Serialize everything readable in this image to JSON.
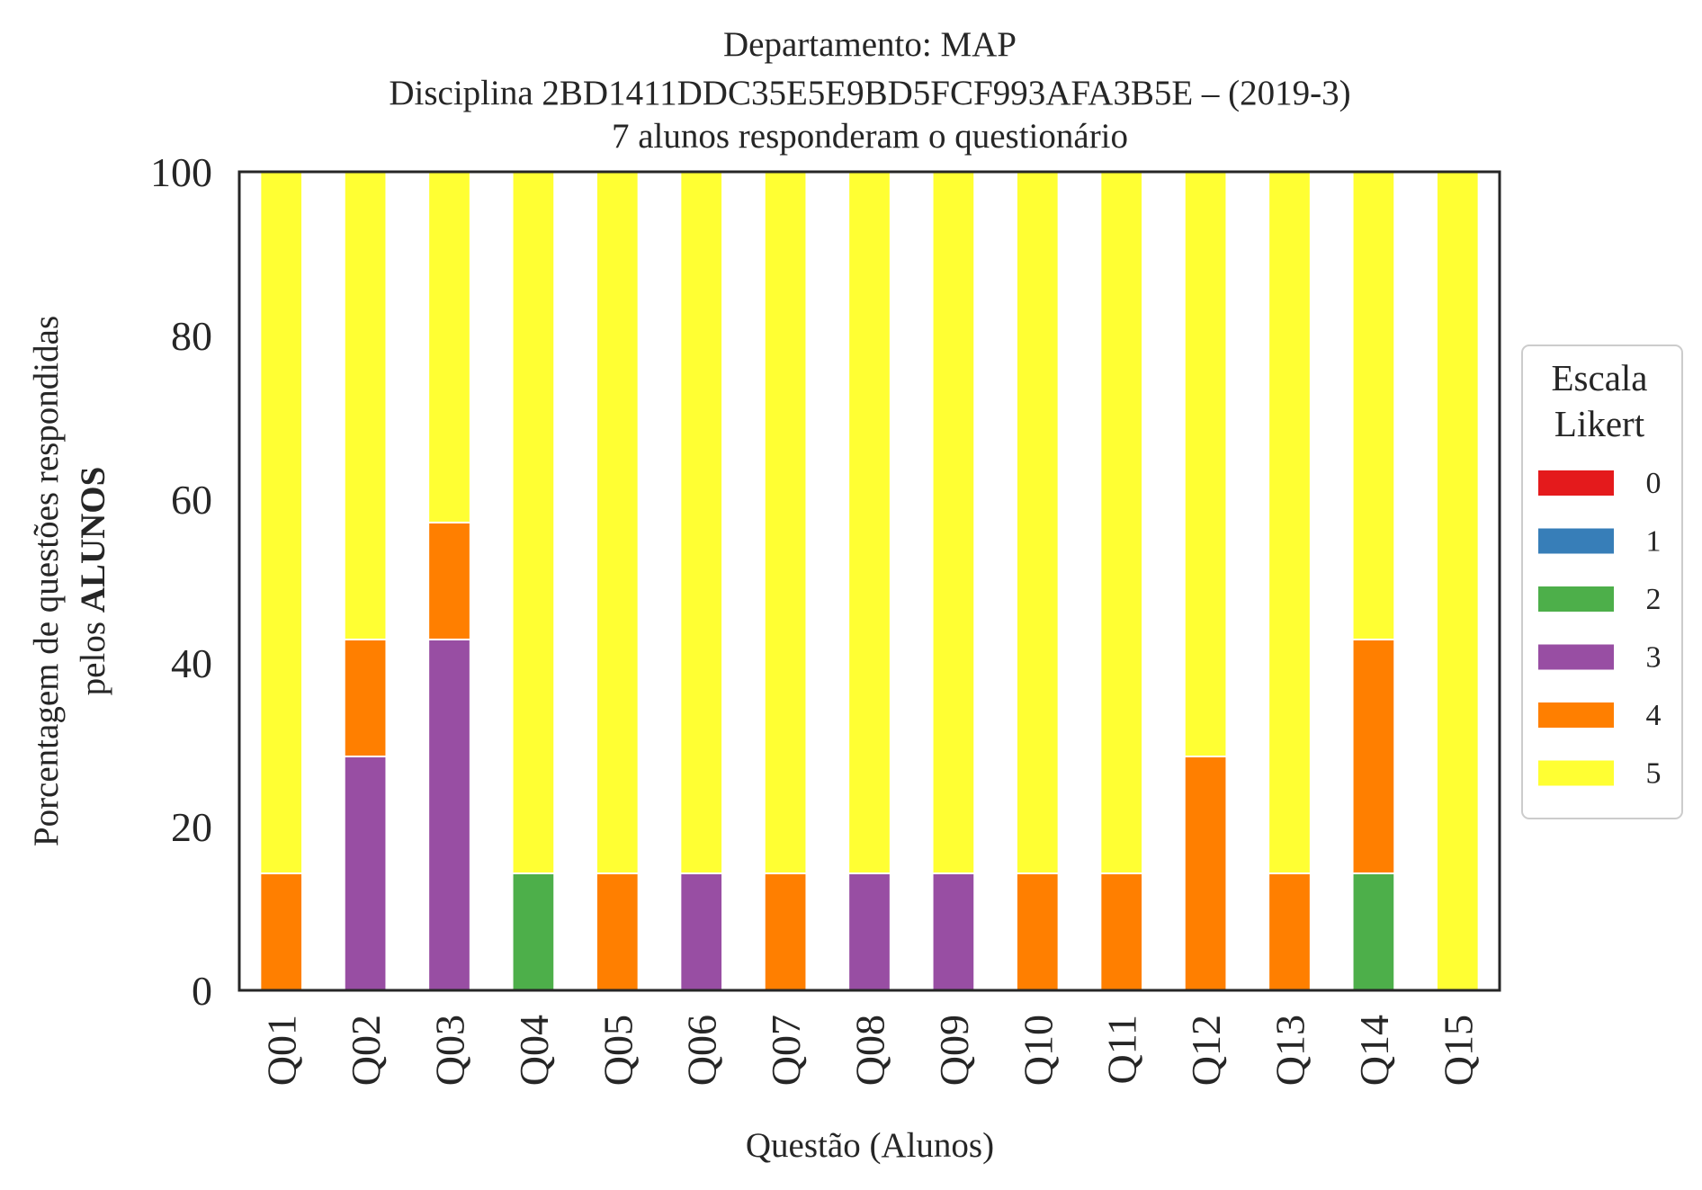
{
  "chart_data": {
    "type": "bar",
    "stacked": true,
    "title": [
      "Departamento: MAP",
      "Disciplina 2BD1411DDC35E5E9BD5FCF993AFA3B5E – (2019-3)",
      "7 alunos responderam o questionário"
    ],
    "xlabel": "Questão (Alunos)",
    "ylabel_line1": "Porcentagem de questões respondidas",
    "ylabel_line2_prefix": "pelos ",
    "ylabel_line2_bold": "ALUNOS",
    "ylim": [
      0,
      100
    ],
    "yticks": [
      "0",
      "20",
      "40",
      "60",
      "80",
      "100"
    ],
    "grid": false,
    "legend": {
      "title_line1": "Escala",
      "title_line2": "Likert",
      "placement": "center-right, outside plot"
    },
    "categories": [
      "Q01",
      "Q02",
      "Q03",
      "Q04",
      "Q05",
      "Q06",
      "Q07",
      "Q08",
      "Q09",
      "Q10",
      "Q11",
      "Q12",
      "Q13",
      "Q14",
      "Q15"
    ],
    "series": [
      {
        "name": "0",
        "color": "#e41a1c",
        "values": [
          0,
          0,
          0,
          0,
          0,
          0,
          0,
          0,
          0,
          0,
          0,
          0,
          0,
          0,
          0
        ]
      },
      {
        "name": "1",
        "color": "#377eb8",
        "values": [
          0,
          0,
          0,
          0,
          0,
          0,
          0,
          0,
          0,
          0,
          0,
          0,
          0,
          0,
          0
        ]
      },
      {
        "name": "2",
        "color": "#4daf4a",
        "values": [
          0,
          0,
          0,
          14.29,
          0,
          0,
          0,
          0,
          0,
          0,
          0,
          0,
          0,
          14.29,
          0
        ]
      },
      {
        "name": "3",
        "color": "#984ea3",
        "values": [
          0,
          28.57,
          42.86,
          0,
          0,
          14.29,
          0,
          14.29,
          14.29,
          0,
          0,
          0,
          0,
          0,
          0
        ]
      },
      {
        "name": "4",
        "color": "#ff7f00",
        "values": [
          14.29,
          14.29,
          14.29,
          0,
          14.29,
          0,
          14.29,
          0,
          0,
          14.29,
          14.29,
          28.57,
          14.29,
          28.57,
          0
        ]
      },
      {
        "name": "5",
        "color": "#ffff33",
        "values": [
          85.71,
          57.14,
          42.86,
          85.71,
          85.71,
          85.71,
          85.71,
          85.71,
          85.71,
          85.71,
          85.71,
          71.43,
          85.71,
          57.14,
          100
        ]
      }
    ]
  }
}
